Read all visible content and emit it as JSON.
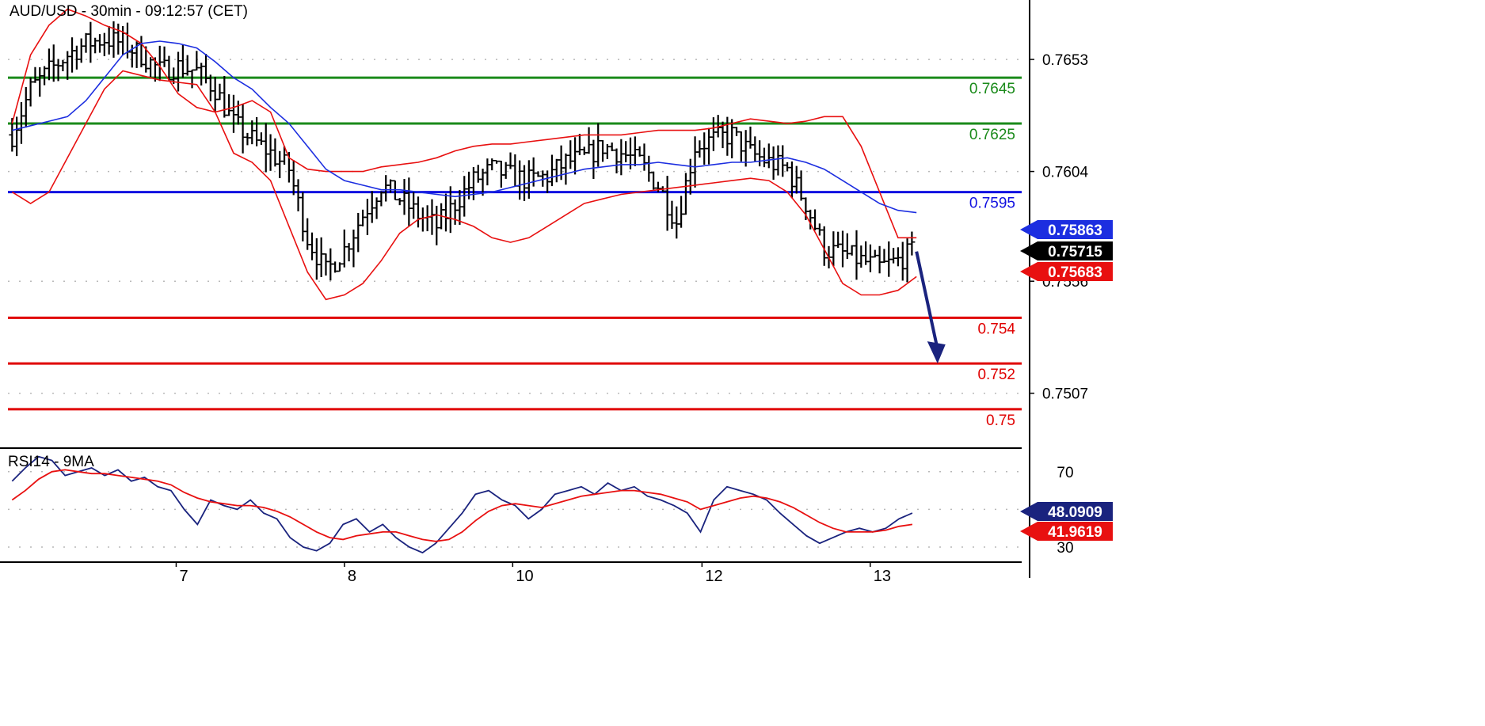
{
  "chart_data": [
    {
      "type": "candlestick",
      "title": "AUD/USD - 30min - 09:12:57 (CET)",
      "xlabel": "",
      "ylabel": "",
      "ylim": [
        0.7483,
        0.7679
      ],
      "grid": true,
      "x_ticks": [
        {
          "label": "7",
          "x": 4.5
        },
        {
          "label": "8",
          "x": 8.5
        },
        {
          "label": "10",
          "x": 12.5
        },
        {
          "label": "12",
          "x": 17
        },
        {
          "label": "13",
          "x": 21
        }
      ],
      "x_range": [
        0.5,
        24.6
      ],
      "y_ticks": [
        "0.7653",
        "0.7604",
        "0.7556",
        "0.7507"
      ],
      "y_tick_values": [
        0.7653,
        0.7604,
        0.7556,
        0.7507
      ],
      "resistance_levels": [
        {
          "value": 0.7645,
          "label": "0.7645",
          "color": "#1a8a1a"
        },
        {
          "value": 0.7625,
          "label": "0.7625",
          "color": "#1a8a1a"
        }
      ],
      "pivot_level": {
        "value": 0.7595,
        "label": "0.7595",
        "color": "#1010e0"
      },
      "support_levels": [
        {
          "value": 0.754,
          "label": "0.754",
          "color": "#e00000"
        },
        {
          "value": 0.752,
          "label": "0.752",
          "color": "#e00000"
        },
        {
          "value": 0.75,
          "label": "0.75",
          "color": "#e00000"
        }
      ],
      "price_badges": [
        {
          "value": 0.75863,
          "label": "0.75863",
          "bg": "#1c2ee0",
          "fg": "#ffffff"
        },
        {
          "value": 0.75715,
          "label": "0.75715",
          "bg": "#000000",
          "fg": "#ffffff"
        },
        {
          "value": 0.75683,
          "label": "0.75683",
          "bg": "#e81010",
          "fg": "#ffffff"
        }
      ],
      "series": [
        {
          "name": "close",
          "values": [
            0.762,
            0.764,
            0.7648,
            0.7655,
            0.766,
            0.7662,
            0.766,
            0.7655,
            0.7648,
            0.765,
            0.7648,
            0.764,
            0.7625,
            0.7618,
            0.7612,
            0.7605,
            0.7575,
            0.756,
            0.757,
            0.7585,
            0.7598,
            0.7592,
            0.7585,
            0.758,
            0.759,
            0.76,
            0.7605,
            0.7602,
            0.76,
            0.7602,
            0.7608,
            0.761,
            0.7615,
            0.7612,
            0.7608,
            0.7598,
            0.7582,
            0.7615,
            0.7618,
            0.762,
            0.7612,
            0.7608,
            0.7605,
            0.759,
            0.757,
            0.7568,
            0.7565,
            0.7562,
            0.7565,
            0.757
          ]
        },
        {
          "name": "upper band",
          "color": "#e81010",
          "values": [
            0.7625,
            0.7655,
            0.7668,
            0.7675,
            0.7672,
            0.7668,
            0.7665,
            0.766,
            0.765,
            0.7638,
            0.7632,
            0.763,
            0.7632,
            0.7635,
            0.763,
            0.761,
            0.7605,
            0.7604,
            0.7604,
            0.7604,
            0.7606,
            0.7607,
            0.7608,
            0.761,
            0.7613,
            0.7615,
            0.7616,
            0.7616,
            0.7617,
            0.7618,
            0.7619,
            0.762,
            0.762,
            0.762,
            0.7621,
            0.7622,
            0.7622,
            0.7622,
            0.7623,
            0.7625,
            0.7627,
            0.7626,
            0.7625,
            0.7626,
            0.7628,
            0.7628,
            0.7615,
            0.7595,
            0.7575,
            0.7575
          ]
        },
        {
          "name": "lower band",
          "color": "#e81010",
          "values": [
            0.7595,
            0.759,
            0.7595,
            0.761,
            0.7625,
            0.764,
            0.7648,
            0.7646,
            0.7644,
            0.7643,
            0.7642,
            0.763,
            0.7612,
            0.7608,
            0.76,
            0.758,
            0.756,
            0.7548,
            0.755,
            0.7555,
            0.7565,
            0.7577,
            0.7583,
            0.7585,
            0.7583,
            0.758,
            0.7575,
            0.7573,
            0.7575,
            0.758,
            0.7585,
            0.759,
            0.7592,
            0.7594,
            0.7595,
            0.7596,
            0.7597,
            0.7598,
            0.7599,
            0.76,
            0.7601,
            0.76,
            0.7595,
            0.7585,
            0.757,
            0.7555,
            0.755,
            0.755,
            0.7552,
            0.7558
          ]
        },
        {
          "name": "moving average",
          "color": "#1c2ee0",
          "values": [
            0.7622,
            0.7624,
            0.7626,
            0.7628,
            0.7635,
            0.7645,
            0.7655,
            0.766,
            0.7661,
            0.766,
            0.7658,
            0.7652,
            0.7645,
            0.764,
            0.7632,
            0.7625,
            0.7615,
            0.7605,
            0.76,
            0.7598,
            0.7596,
            0.7596,
            0.7595,
            0.7594,
            0.7593,
            0.7594,
            0.7595,
            0.7597,
            0.7599,
            0.7601,
            0.7603,
            0.7605,
            0.7606,
            0.7607,
            0.7607,
            0.7608,
            0.7607,
            0.7606,
            0.7607,
            0.7608,
            0.7608,
            0.7609,
            0.761,
            0.7608,
            0.7605,
            0.76,
            0.7595,
            0.759,
            0.7587,
            0.7586
          ]
        }
      ],
      "forecast_arrow": {
        "from": [
          22.1,
          0.7569
        ],
        "to": [
          22.6,
          0.752
        ],
        "color": "#1a237e"
      }
    },
    {
      "type": "line",
      "title": "RSI14 - 9MA",
      "xlabel": "",
      "ylabel": "",
      "ylim": [
        22,
        80
      ],
      "grid": true,
      "y_ticks": [
        "70",
        "30"
      ],
      "y_tick_values": [
        70,
        30
      ],
      "series": [
        {
          "name": "RSI14",
          "color": "#1a237e",
          "values": [
            65,
            72,
            78,
            76,
            68,
            70,
            72,
            68,
            71,
            65,
            67,
            62,
            60,
            50,
            42,
            55,
            52,
            50,
            55,
            48,
            45,
            35,
            30,
            28,
            32,
            42,
            45,
            38,
            42,
            35,
            30,
            27,
            32,
            40,
            48,
            58,
            60,
            55,
            52,
            45,
            50,
            58,
            60,
            62,
            58,
            64,
            60,
            62,
            57,
            55,
            52,
            48,
            38,
            55,
            62,
            60,
            58,
            55,
            48,
            42,
            36,
            32,
            35,
            38,
            40,
            38,
            40,
            45,
            48
          ]
        },
        {
          "name": "9MA",
          "color": "#e81010",
          "values": [
            55,
            60,
            66,
            70,
            71,
            70,
            69,
            69,
            68,
            67,
            66,
            65,
            63,
            59,
            56,
            54,
            53,
            52,
            52,
            51,
            49,
            46,
            42,
            38,
            35,
            34,
            36,
            37,
            38,
            38,
            36,
            34,
            33,
            34,
            38,
            44,
            49,
            52,
            53,
            52,
            51,
            53,
            55,
            57,
            58,
            59,
            60,
            60,
            59,
            58,
            56,
            54,
            50,
            52,
            54,
            56,
            57,
            56,
            54,
            51,
            47,
            43,
            40,
            38,
            38,
            38,
            39,
            41,
            42
          ]
        }
      ],
      "value_badges": [
        {
          "value": 48.0909,
          "label": "48.0909",
          "bg": "#1a237e",
          "fg": "#ffffff"
        },
        {
          "value": 41.9619,
          "label": "41.9619",
          "bg": "#e81010",
          "fg": "#ffffff"
        }
      ]
    }
  ]
}
